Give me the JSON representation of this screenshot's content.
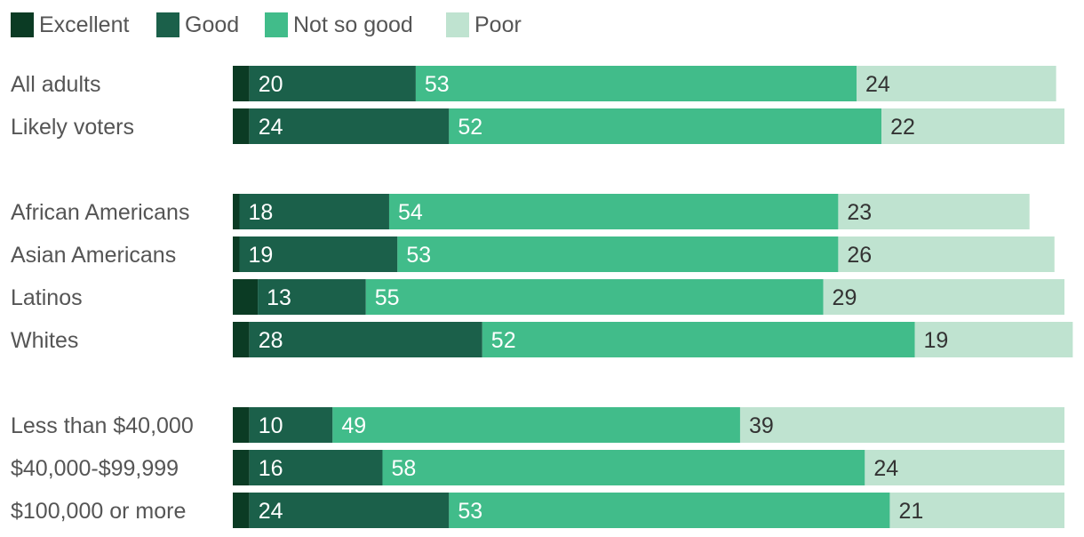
{
  "chart_data": {
    "type": "bar",
    "orientation": "horizontal",
    "stacked": true,
    "title": "",
    "xlabel": "",
    "ylabel": "",
    "xlim": [
      0,
      100
    ],
    "legend_position": "top-left",
    "categories": [
      "All adults",
      "Likely voters",
      "African Americans",
      "Asian Americans",
      "Latinos",
      "Whites",
      "Less than $40,000",
      "$40,000-$99,999",
      "$100,000 or more"
    ],
    "groups": [
      [
        0,
        1
      ],
      [
        2,
        3,
        4,
        5
      ],
      [
        6,
        7,
        8
      ]
    ],
    "series": [
      {
        "name": "Excellent",
        "color": "#0b3b24",
        "label_color": "#ffffff",
        "show_labels": false,
        "values": [
          2,
          2,
          0.8,
          0.8,
          3,
          2,
          2,
          2,
          2
        ]
      },
      {
        "name": "Good",
        "color": "#1b604a",
        "label_color": "#ffffff",
        "show_labels": true,
        "values": [
          20,
          24,
          18,
          19,
          13,
          28,
          10,
          16,
          24
        ]
      },
      {
        "name": "Not so good",
        "color": "#41bc8a",
        "label_color": "#ffffff",
        "show_labels": true,
        "values": [
          53,
          52,
          54,
          53,
          55,
          52,
          49,
          58,
          53
        ]
      },
      {
        "name": "Poor",
        "color": "#bfe3d0",
        "label_color": "#333333",
        "show_labels": true,
        "values": [
          24,
          22,
          23,
          26,
          29,
          19,
          39,
          24,
          21
        ]
      }
    ]
  }
}
